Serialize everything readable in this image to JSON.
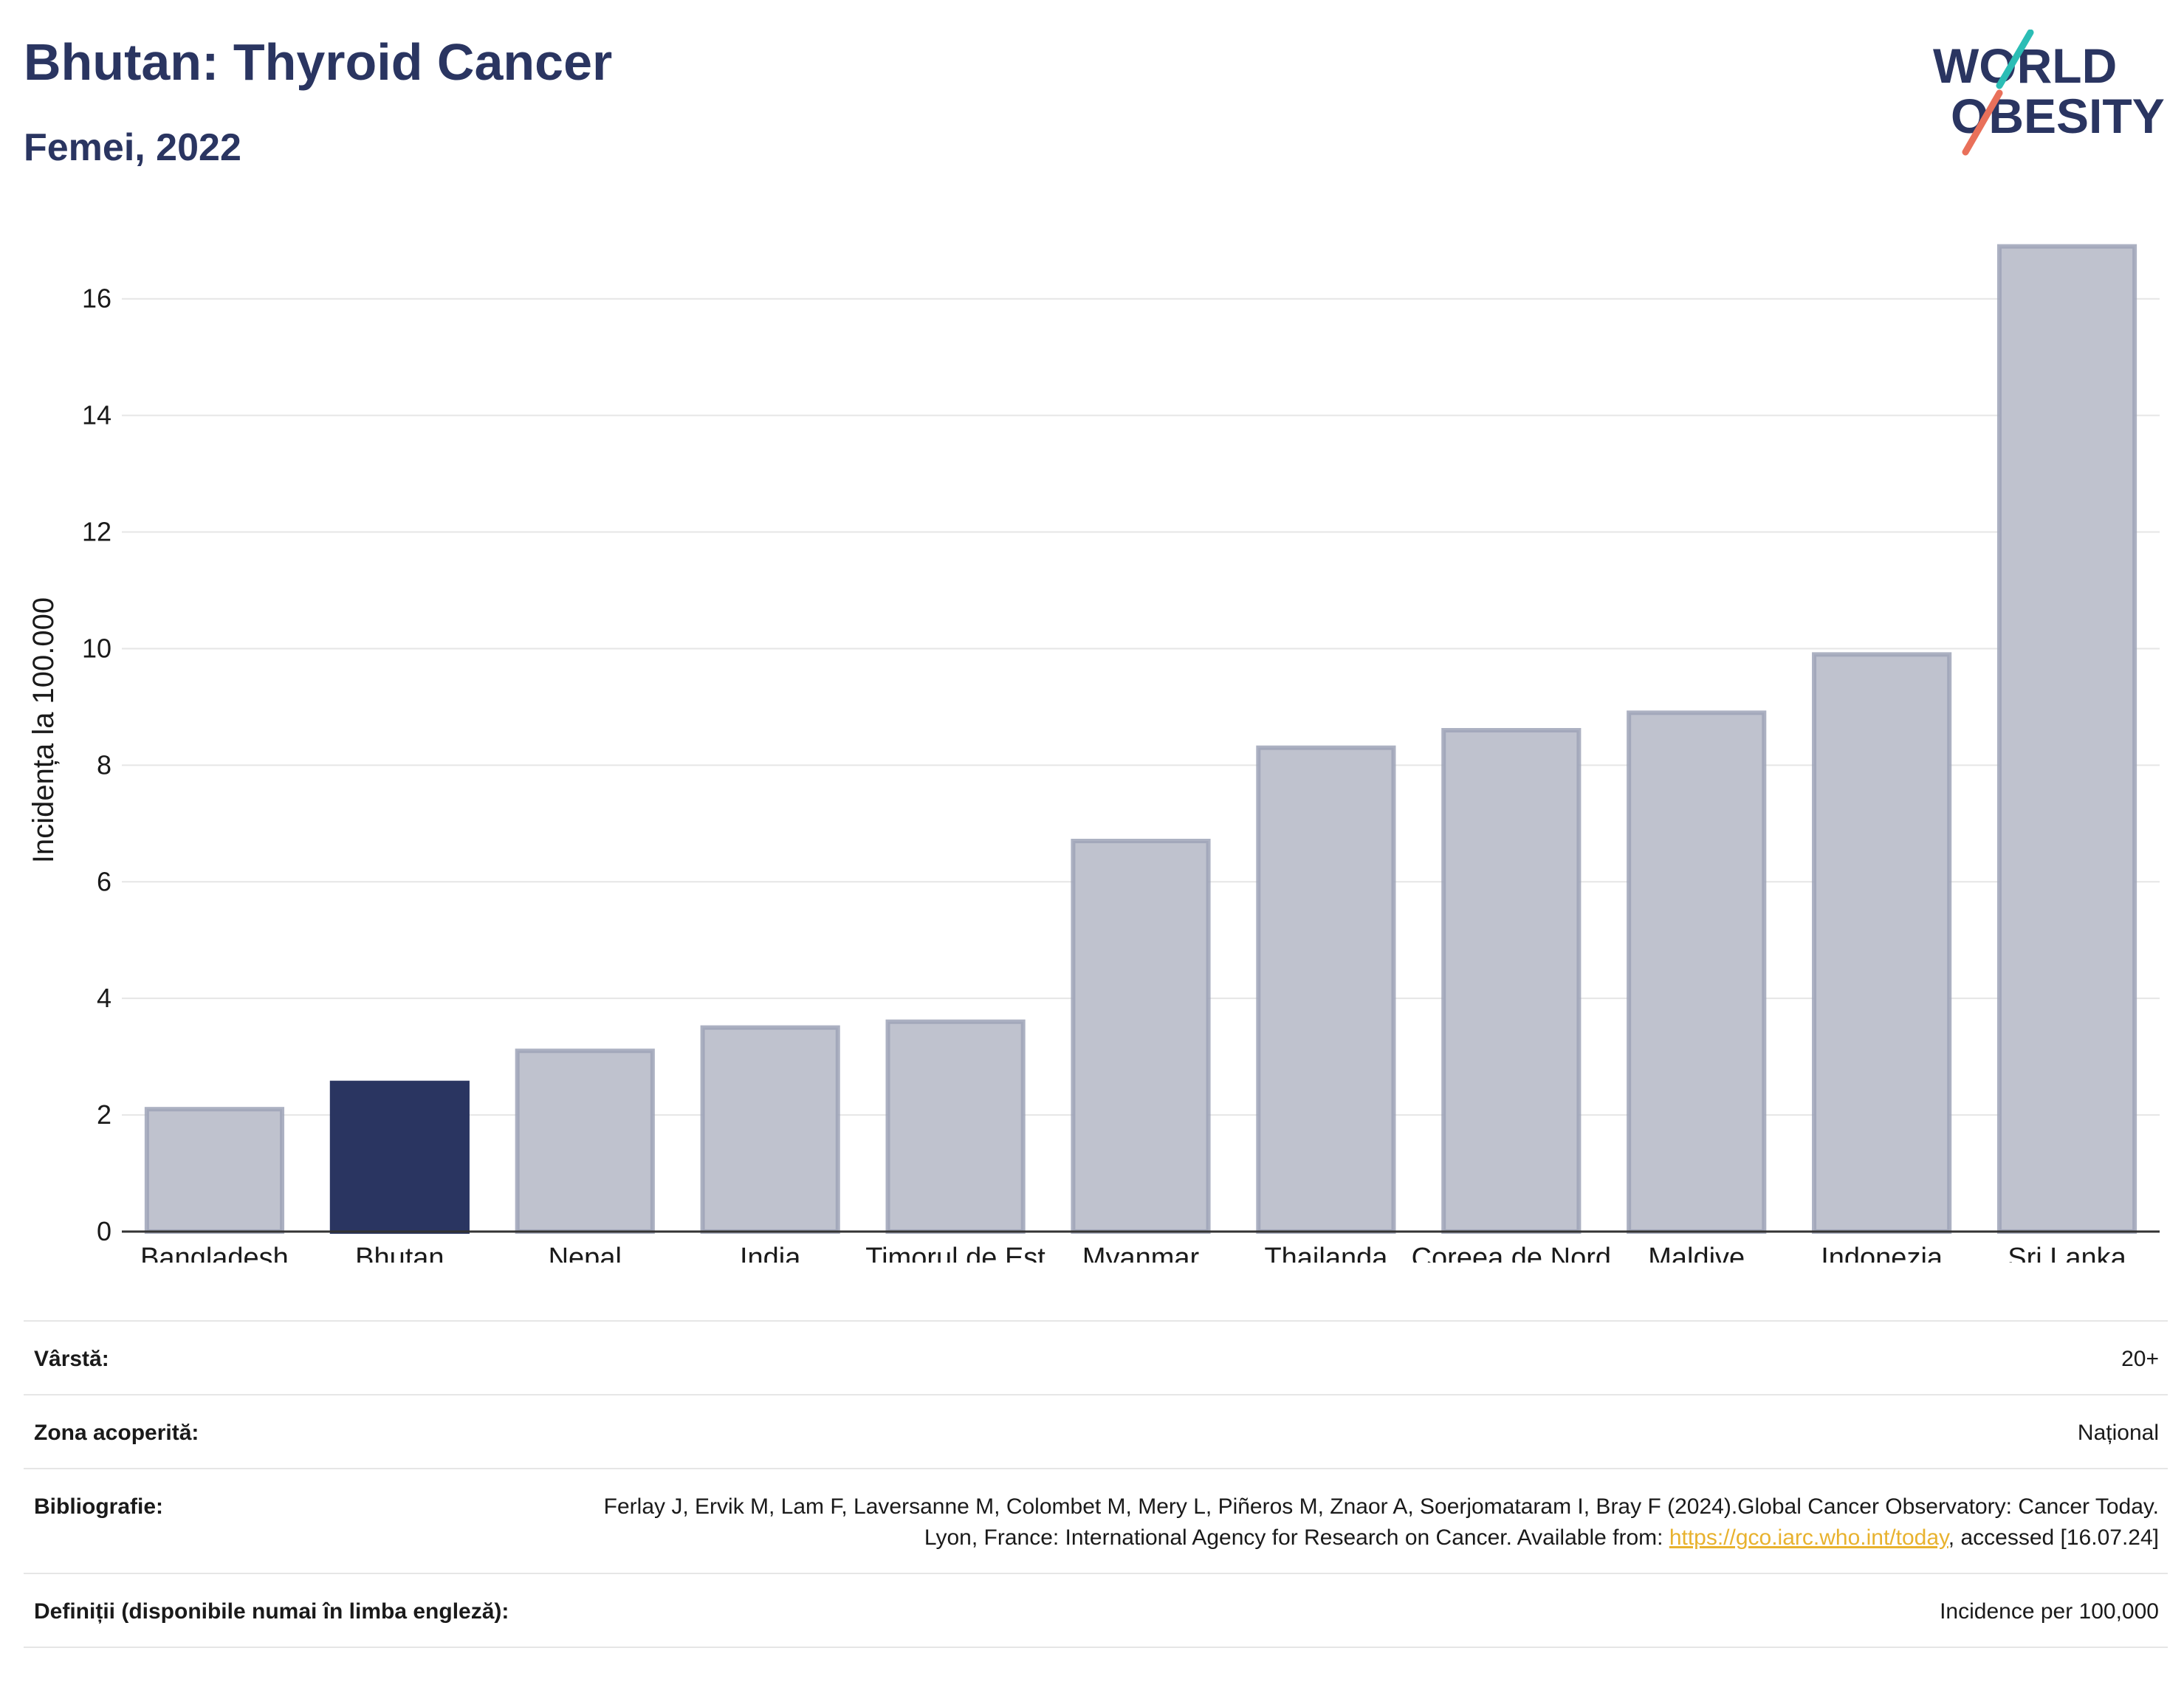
{
  "header": {
    "title": "Bhutan: Thyroid Cancer",
    "subtitle": "Femei, 2022"
  },
  "logo": {
    "line1": "WORLD",
    "line2": "OBESITY"
  },
  "colors": {
    "highlight": "#2a3561",
    "bar": "#bfc2ce",
    "bar_outline": "#9ea3b7",
    "accent_teal": "#2bbdb5",
    "accent_coral": "#e9705a"
  },
  "chart_data": {
    "type": "bar",
    "categories": [
      "Bangladesh",
      "Bhutan",
      "Nepal",
      "India",
      "Timorul de Est",
      "Myanmar",
      "Thailanda",
      "Coreea de Nord",
      "Maldive",
      "Indonezia",
      "Sri Lanka"
    ],
    "values": [
      2.1,
      2.55,
      3.1,
      3.5,
      3.6,
      6.7,
      8.3,
      8.6,
      8.9,
      9.9,
      16.9
    ],
    "highlight": "Bhutan",
    "ylabel": "Incidența la 100.000",
    "xlabel": "",
    "ylim": [
      0,
      17.2
    ],
    "yticks": [
      0,
      2,
      4,
      6,
      8,
      10,
      12,
      14,
      16
    ],
    "grid": true
  },
  "info": [
    {
      "label": "Vârstă:",
      "value": "20+"
    },
    {
      "label": "Zona acoperită:",
      "value": "Național"
    },
    {
      "label": "Bibliografie:",
      "value": "Ferlay J, Ervik M, Lam F, Laversanne M, Colombet M, Mery L, Piñeros M, Znaor A, Soerjomataram I, Bray F (2024).Global Cancer Observatory: Cancer Today. Lyon, France: International Agency for Research on Cancer. Available from:",
      "link": "https://gco.iarc.who.int/today",
      "suffix": ", accessed [16.07.24]"
    },
    {
      "label": "Definiții (disponibile numai în limba engleză):",
      "value": "Incidence per 100,000"
    }
  ]
}
